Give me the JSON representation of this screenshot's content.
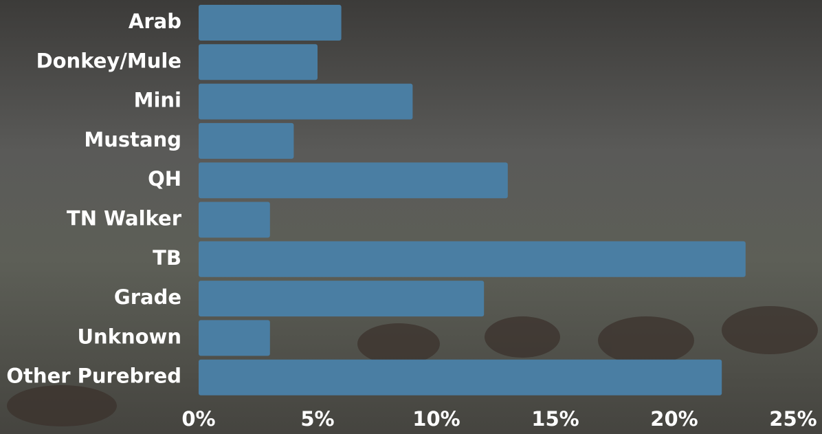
{
  "chart_data": {
    "type": "hbar",
    "categories": [
      "Arab",
      "Donkey/Mule",
      "Mini",
      "Mustang",
      "QH",
      "TN Walker",
      "TB",
      "Grade",
      "Unknown",
      "Other Purebred"
    ],
    "values": [
      6,
      5,
      9,
      4,
      13,
      3,
      23,
      12,
      3,
      22
    ],
    "color": "#4a7ea3",
    "xlim": [
      0,
      25
    ],
    "xticks": [
      {
        "value": 0,
        "label": "0%"
      },
      {
        "value": 5,
        "label": "5%"
      },
      {
        "value": 10,
        "label": "10%"
      },
      {
        "value": 15,
        "label": "15%"
      },
      {
        "value": 20,
        "label": "20%"
      },
      {
        "value": 25,
        "label": "25%"
      }
    ],
    "grid": false
  }
}
